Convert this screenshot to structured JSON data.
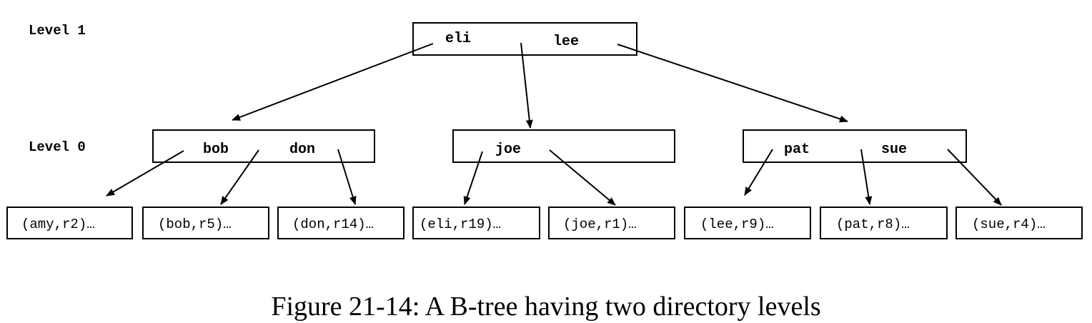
{
  "figure": {
    "caption": "Figure 21-14:  A B-tree having two directory levels",
    "level_labels": [
      "Level 1",
      "Level 0"
    ],
    "root": {
      "keys": [
        "eli",
        "lee"
      ]
    },
    "directory_nodes": [
      {
        "keys": [
          "bob",
          "don"
        ]
      },
      {
        "keys": [
          "joe"
        ]
      },
      {
        "keys": [
          "pat",
          "sue"
        ]
      }
    ],
    "leaves": [
      {
        "label": "(amy,r2)…"
      },
      {
        "label": "(bob,r5)…"
      },
      {
        "label": "(don,r14)…"
      },
      {
        "label": "(eli,r19)…"
      },
      {
        "label": "(joe,r1)…"
      },
      {
        "label": "(lee,r9)…"
      },
      {
        "label": "(pat,r8)…"
      },
      {
        "label": "(sue,r4)…"
      }
    ]
  }
}
